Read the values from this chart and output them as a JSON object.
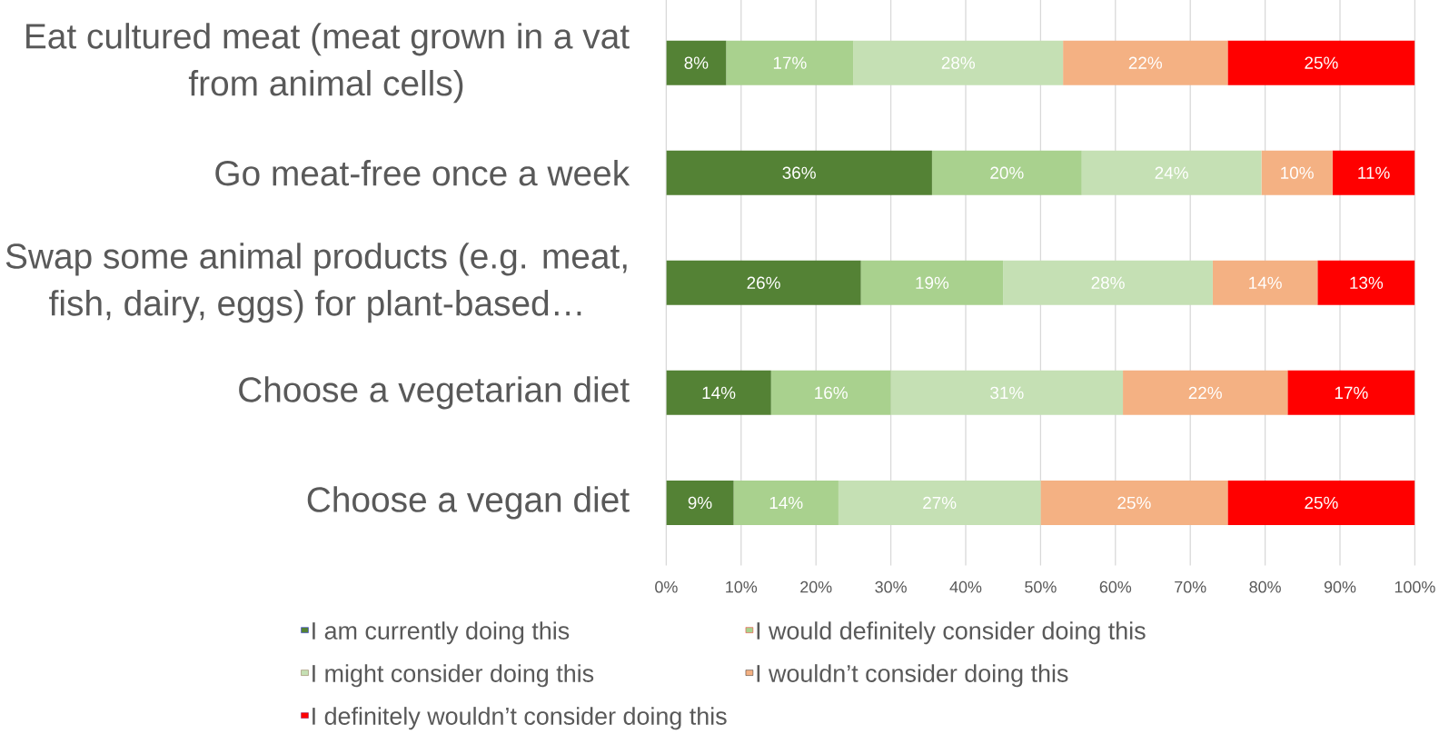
{
  "chart_data": {
    "type": "bar",
    "orientation": "horizontal",
    "stacked": true,
    "categories": [
      "Eat cultured meat (meat grown in a vat from animal cells)",
      "Go meat-free once a week",
      "Swap some animal products (e.g. meat, fish, dairy, eggs) for plant-based…",
      "Choose a vegetarian diet",
      "Choose a vegan diet"
    ],
    "series": [
      {
        "name": "I am currently doing this",
        "color": "#548235",
        "values": [
          8,
          35.5,
          26,
          14,
          9
        ],
        "value_labels": [
          "8%",
          "36%",
          "26%",
          "14%",
          "9%"
        ]
      },
      {
        "name": "I would definitely consider doing this",
        "color": "#A9D18E",
        "values": [
          17,
          20,
          19,
          16,
          14
        ],
        "value_labels": [
          "17%",
          "20%",
          "19%",
          "16%",
          "14%"
        ]
      },
      {
        "name": "I might consider doing this",
        "color": "#C5E0B4",
        "values": [
          28,
          24,
          28,
          31,
          27
        ],
        "value_labels": [
          "28%",
          "24%",
          "28%",
          "31%",
          "27%"
        ]
      },
      {
        "name": "I wouldn’t consider doing this",
        "color": "#F4B183",
        "values": [
          22,
          9.5,
          14,
          22,
          25
        ],
        "value_labels": [
          "22%",
          "10%",
          "14%",
          "22%",
          "25%"
        ]
      },
      {
        "name": "I definitely wouldn’t consider doing this",
        "color": "#FF0000",
        "values": [
          25,
          11,
          13,
          17,
          25
        ],
        "value_labels": [
          "25%",
          "11%",
          "13%",
          "17%",
          "25%"
        ]
      }
    ],
    "xlim": [
      0,
      100
    ],
    "xticks": [
      {
        "value": 0,
        "label": "0%"
      },
      {
        "value": 10,
        "label": "10%"
      },
      {
        "value": 20,
        "label": "20%"
      },
      {
        "value": 30,
        "label": "30%"
      },
      {
        "value": 40,
        "label": "40%"
      },
      {
        "value": 50,
        "label": "50%"
      },
      {
        "value": 60,
        "label": "60%"
      },
      {
        "value": 70,
        "label": "70%"
      },
      {
        "value": 80,
        "label": "80%"
      },
      {
        "value": 90,
        "label": "90%"
      },
      {
        "value": 100,
        "label": "100%"
      }
    ],
    "grid": "x",
    "legend": "bottom"
  }
}
